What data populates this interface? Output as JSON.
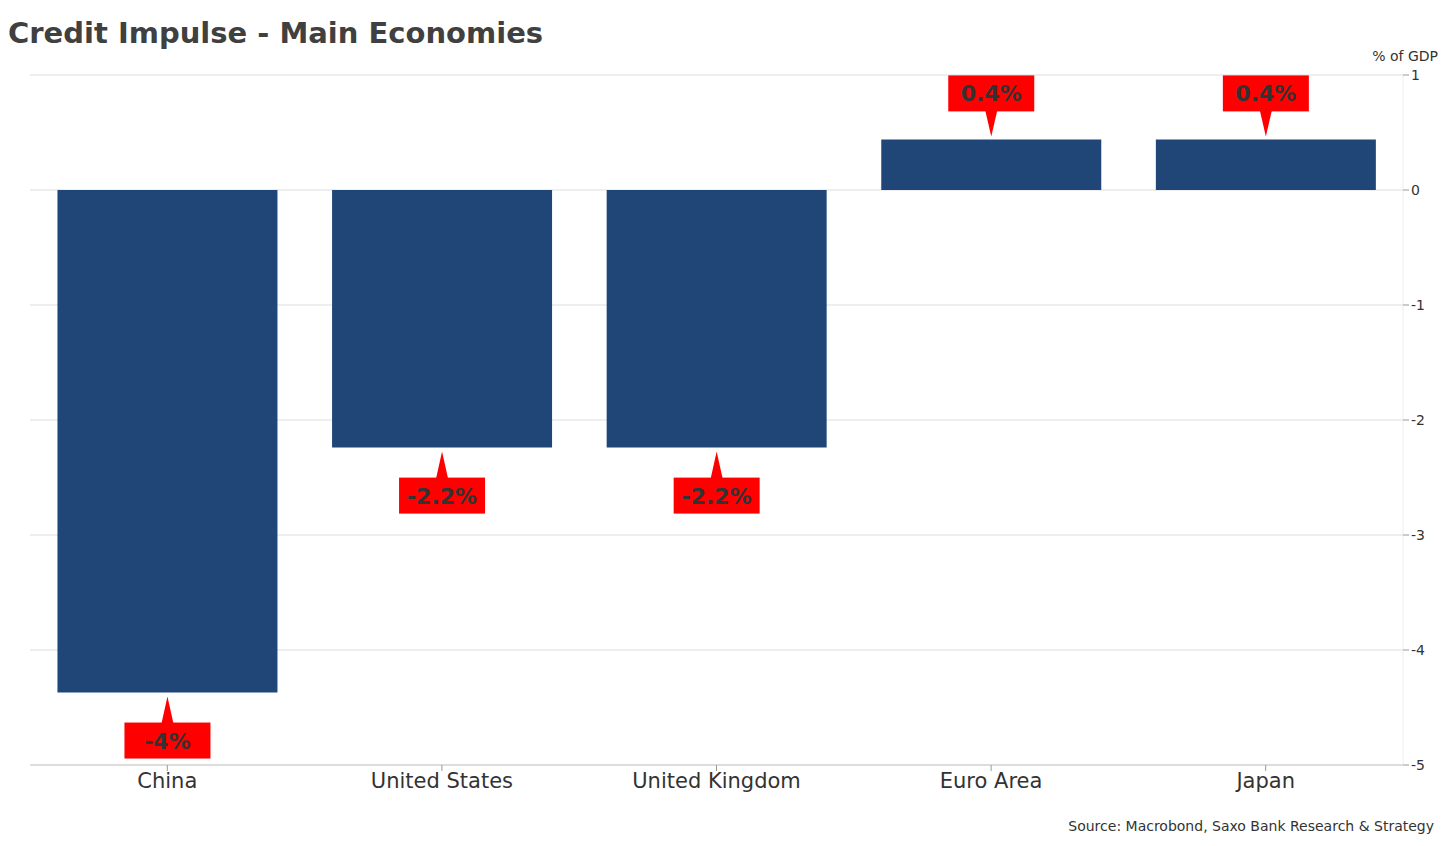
{
  "chart_data": {
    "type": "bar",
    "title": "Credit Impulse - Main Economies",
    "ylabel": "% of GDP",
    "source": "Source: Macrobond, Saxo Bank Research & Strategy",
    "categories": [
      "China",
      "United States",
      "United Kingdom",
      "Euro Area",
      "Japan"
    ],
    "values": [
      -4.37,
      -2.24,
      -2.24,
      0.44,
      0.44
    ],
    "value_labels": [
      "-4%",
      "-2.2%",
      "-2.2%",
      "0.4%",
      "0.4%"
    ],
    "data_labels": true,
    "color": "#1f4677",
    "ylim": [
      -5,
      1
    ],
    "yticks": [
      -5,
      -4,
      -3,
      -2,
      -1,
      0,
      1
    ],
    "grid": true
  }
}
